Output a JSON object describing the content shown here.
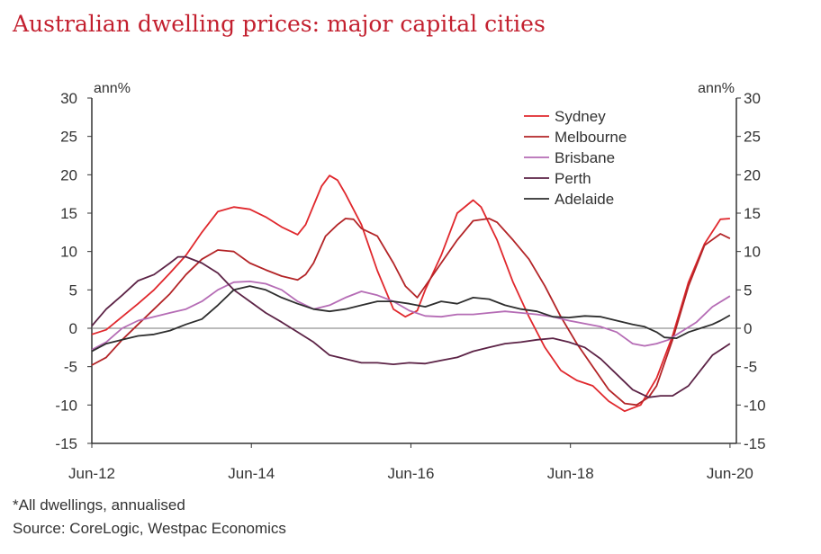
{
  "title": "Australian dwelling prices: major capital cities",
  "footnotes": {
    "note": "*All dwellings, annualised",
    "source": "Source: CoreLogic, Westpac Economics"
  },
  "chart_data": {
    "type": "line",
    "title": "Australian dwelling prices: major capital cities",
    "y_unit_left": "ann%",
    "y_unit_right": "ann%",
    "ylim": [
      -15,
      30
    ],
    "yticks": [
      30,
      25,
      20,
      15,
      10,
      5,
      0,
      -5,
      -10,
      -15
    ],
    "xlim": [
      2012.42,
      2020.5
    ],
    "x_ticks": [
      {
        "label": "Jun-12",
        "x": 2012.42
      },
      {
        "label": "Jun-14",
        "x": 2014.42
      },
      {
        "label": "Jun-16",
        "x": 2016.42
      },
      {
        "label": "Jun-18",
        "x": 2018.42
      },
      {
        "label": "Jun-20",
        "x": 2020.42
      }
    ],
    "legend_position": "top-right",
    "grid": false,
    "series": [
      {
        "name": "Sydney",
        "color": "#e0282d",
        "points": [
          [
            2012.42,
            -0.8
          ],
          [
            2012.6,
            -0.2
          ],
          [
            2012.8,
            1.5
          ],
          [
            2013.0,
            3.2
          ],
          [
            2013.2,
            5.0
          ],
          [
            2013.4,
            7.2
          ],
          [
            2013.6,
            9.5
          ],
          [
            2013.8,
            12.5
          ],
          [
            2014.0,
            15.2
          ],
          [
            2014.2,
            15.8
          ],
          [
            2014.4,
            15.5
          ],
          [
            2014.6,
            14.5
          ],
          [
            2014.8,
            13.2
          ],
          [
            2015.0,
            12.2
          ],
          [
            2015.1,
            13.5
          ],
          [
            2015.2,
            16.0
          ],
          [
            2015.3,
            18.5
          ],
          [
            2015.4,
            19.9
          ],
          [
            2015.5,
            19.3
          ],
          [
            2015.6,
            17.5
          ],
          [
            2015.8,
            13.5
          ],
          [
            2016.0,
            7.5
          ],
          [
            2016.2,
            2.5
          ],
          [
            2016.35,
            1.5
          ],
          [
            2016.5,
            2.3
          ],
          [
            2016.6,
            5.0
          ],
          [
            2016.8,
            9.5
          ],
          [
            2017.0,
            15.0
          ],
          [
            2017.2,
            16.7
          ],
          [
            2017.3,
            15.8
          ],
          [
            2017.5,
            11.5
          ],
          [
            2017.7,
            6.0
          ],
          [
            2017.9,
            1.5
          ],
          [
            2018.1,
            -2.5
          ],
          [
            2018.3,
            -5.5
          ],
          [
            2018.5,
            -6.8
          ],
          [
            2018.7,
            -7.5
          ],
          [
            2018.9,
            -9.5
          ],
          [
            2019.1,
            -10.8
          ],
          [
            2019.3,
            -10.0
          ],
          [
            2019.5,
            -6.5
          ],
          [
            2019.7,
            -1.0
          ],
          [
            2019.9,
            6.0
          ],
          [
            2020.1,
            11.0
          ],
          [
            2020.3,
            14.2
          ],
          [
            2020.42,
            14.3
          ]
        ]
      },
      {
        "name": "Melbourne",
        "color": "#b32427",
        "points": [
          [
            2012.42,
            -4.8
          ],
          [
            2012.6,
            -3.8
          ],
          [
            2012.8,
            -1.5
          ],
          [
            2013.0,
            0.5
          ],
          [
            2013.2,
            2.5
          ],
          [
            2013.4,
            4.5
          ],
          [
            2013.6,
            7.0
          ],
          [
            2013.8,
            9.0
          ],
          [
            2014.0,
            10.2
          ],
          [
            2014.2,
            10.0
          ],
          [
            2014.4,
            8.5
          ],
          [
            2014.6,
            7.6
          ],
          [
            2014.8,
            6.8
          ],
          [
            2015.0,
            6.3
          ],
          [
            2015.1,
            7.0
          ],
          [
            2015.2,
            8.5
          ],
          [
            2015.35,
            12.0
          ],
          [
            2015.5,
            13.5
          ],
          [
            2015.6,
            14.3
          ],
          [
            2015.7,
            14.2
          ],
          [
            2015.8,
            13.0
          ],
          [
            2016.0,
            12.0
          ],
          [
            2016.2,
            8.5
          ],
          [
            2016.35,
            5.5
          ],
          [
            2016.5,
            4.0
          ],
          [
            2016.6,
            5.5
          ],
          [
            2016.8,
            8.5
          ],
          [
            2017.0,
            11.5
          ],
          [
            2017.2,
            14.0
          ],
          [
            2017.4,
            14.3
          ],
          [
            2017.5,
            13.8
          ],
          [
            2017.7,
            11.5
          ],
          [
            2017.9,
            9.0
          ],
          [
            2018.1,
            5.5
          ],
          [
            2018.3,
            1.5
          ],
          [
            2018.5,
            -2.0
          ],
          [
            2018.7,
            -5.0
          ],
          [
            2018.9,
            -8.0
          ],
          [
            2019.1,
            -9.8
          ],
          [
            2019.25,
            -10.0
          ],
          [
            2019.4,
            -9.0
          ],
          [
            2019.5,
            -7.5
          ],
          [
            2019.7,
            -1.5
          ],
          [
            2019.9,
            5.5
          ],
          [
            2020.1,
            10.8
          ],
          [
            2020.3,
            12.3
          ],
          [
            2020.42,
            11.7
          ]
        ]
      },
      {
        "name": "Brisbane",
        "color": "#b56cb5",
        "points": [
          [
            2012.42,
            -2.8
          ],
          [
            2012.6,
            -1.8
          ],
          [
            2012.8,
            0.0
          ],
          [
            2013.0,
            1.0
          ],
          [
            2013.2,
            1.5
          ],
          [
            2013.4,
            2.0
          ],
          [
            2013.6,
            2.5
          ],
          [
            2013.8,
            3.5
          ],
          [
            2014.0,
            5.0
          ],
          [
            2014.2,
            6.0
          ],
          [
            2014.4,
            6.1
          ],
          [
            2014.6,
            5.8
          ],
          [
            2014.8,
            5.0
          ],
          [
            2015.0,
            3.5
          ],
          [
            2015.2,
            2.5
          ],
          [
            2015.4,
            3.0
          ],
          [
            2015.6,
            4.0
          ],
          [
            2015.8,
            4.8
          ],
          [
            2016.0,
            4.3
          ],
          [
            2016.2,
            3.5
          ],
          [
            2016.4,
            2.3
          ],
          [
            2016.6,
            1.6
          ],
          [
            2016.8,
            1.5
          ],
          [
            2017.0,
            1.8
          ],
          [
            2017.2,
            1.8
          ],
          [
            2017.4,
            2.0
          ],
          [
            2017.6,
            2.2
          ],
          [
            2017.8,
            2.0
          ],
          [
            2018.0,
            1.8
          ],
          [
            2018.2,
            1.5
          ],
          [
            2018.4,
            1.0
          ],
          [
            2018.6,
            0.6
          ],
          [
            2018.8,
            0.2
          ],
          [
            2019.0,
            -0.5
          ],
          [
            2019.2,
            -2.0
          ],
          [
            2019.35,
            -2.3
          ],
          [
            2019.5,
            -2.0
          ],
          [
            2019.65,
            -1.5
          ],
          [
            2019.8,
            -0.5
          ],
          [
            2020.0,
            0.8
          ],
          [
            2020.2,
            2.8
          ],
          [
            2020.42,
            4.2
          ]
        ]
      },
      {
        "name": "Perth",
        "color": "#5c2346",
        "points": [
          [
            2012.42,
            0.3
          ],
          [
            2012.6,
            2.5
          ],
          [
            2012.8,
            4.3
          ],
          [
            2013.0,
            6.2
          ],
          [
            2013.2,
            7.0
          ],
          [
            2013.4,
            8.5
          ],
          [
            2013.5,
            9.3
          ],
          [
            2013.6,
            9.3
          ],
          [
            2013.8,
            8.5
          ],
          [
            2014.0,
            7.2
          ],
          [
            2014.2,
            5.0
          ],
          [
            2014.4,
            3.5
          ],
          [
            2014.6,
            2.0
          ],
          [
            2014.8,
            0.8
          ],
          [
            2015.0,
            -0.5
          ],
          [
            2015.2,
            -1.8
          ],
          [
            2015.4,
            -3.5
          ],
          [
            2015.6,
            -4.0
          ],
          [
            2015.8,
            -4.5
          ],
          [
            2016.0,
            -4.5
          ],
          [
            2016.2,
            -4.7
          ],
          [
            2016.4,
            -4.5
          ],
          [
            2016.6,
            -4.6
          ],
          [
            2016.8,
            -4.2
          ],
          [
            2017.0,
            -3.8
          ],
          [
            2017.2,
            -3.0
          ],
          [
            2017.4,
            -2.5
          ],
          [
            2017.6,
            -2.0
          ],
          [
            2017.8,
            -1.8
          ],
          [
            2018.0,
            -1.5
          ],
          [
            2018.2,
            -1.3
          ],
          [
            2018.4,
            -1.8
          ],
          [
            2018.6,
            -2.5
          ],
          [
            2018.8,
            -4.0
          ],
          [
            2019.0,
            -6.0
          ],
          [
            2019.2,
            -8.0
          ],
          [
            2019.4,
            -9.0
          ],
          [
            2019.55,
            -8.8
          ],
          [
            2019.7,
            -8.8
          ],
          [
            2019.9,
            -7.5
          ],
          [
            2020.05,
            -5.5
          ],
          [
            2020.2,
            -3.5
          ],
          [
            2020.42,
            -2.0
          ]
        ]
      },
      {
        "name": "Adelaide",
        "color": "#2e2e2e",
        "points": [
          [
            2012.42,
            -3.0
          ],
          [
            2012.6,
            -2.0
          ],
          [
            2012.8,
            -1.5
          ],
          [
            2013.0,
            -1.0
          ],
          [
            2013.2,
            -0.8
          ],
          [
            2013.4,
            -0.3
          ],
          [
            2013.6,
            0.5
          ],
          [
            2013.8,
            1.2
          ],
          [
            2014.0,
            3.0
          ],
          [
            2014.2,
            5.0
          ],
          [
            2014.4,
            5.5
          ],
          [
            2014.6,
            5.0
          ],
          [
            2014.8,
            4.0
          ],
          [
            2015.0,
            3.2
          ],
          [
            2015.2,
            2.5
          ],
          [
            2015.4,
            2.2
          ],
          [
            2015.6,
            2.5
          ],
          [
            2015.8,
            3.0
          ],
          [
            2016.0,
            3.5
          ],
          [
            2016.2,
            3.5
          ],
          [
            2016.4,
            3.2
          ],
          [
            2016.6,
            2.8
          ],
          [
            2016.8,
            3.5
          ],
          [
            2017.0,
            3.2
          ],
          [
            2017.2,
            4.0
          ],
          [
            2017.4,
            3.8
          ],
          [
            2017.6,
            3.0
          ],
          [
            2017.8,
            2.5
          ],
          [
            2018.0,
            2.2
          ],
          [
            2018.2,
            1.5
          ],
          [
            2018.4,
            1.4
          ],
          [
            2018.6,
            1.6
          ],
          [
            2018.8,
            1.5
          ],
          [
            2019.0,
            1.0
          ],
          [
            2019.2,
            0.5
          ],
          [
            2019.35,
            0.2
          ],
          [
            2019.5,
            -0.5
          ],
          [
            2019.6,
            -1.2
          ],
          [
            2019.75,
            -1.3
          ],
          [
            2019.9,
            -0.5
          ],
          [
            2020.05,
            0.0
          ],
          [
            2020.2,
            0.5
          ],
          [
            2020.3,
            1.0
          ],
          [
            2020.42,
            1.7
          ]
        ]
      }
    ]
  }
}
